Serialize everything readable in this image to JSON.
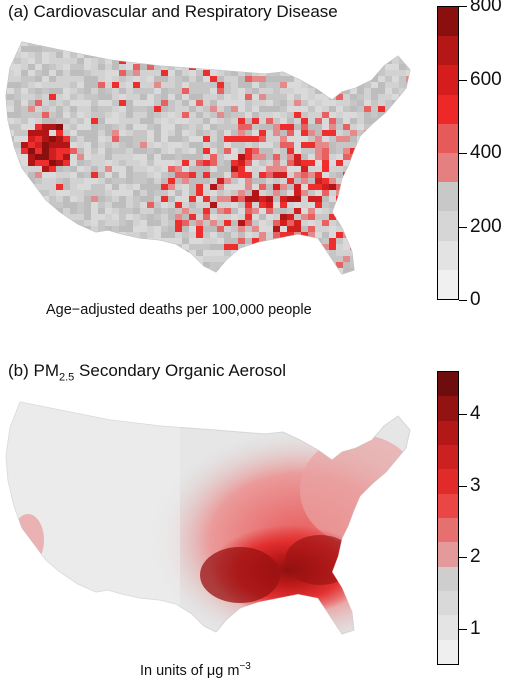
{
  "panel_a": {
    "title": "(a) Cardiovascular and Respiratory Disease",
    "caption": "Age−adjusted deaths per 100,000 people",
    "colorbar": {
      "min": 0,
      "max": 800,
      "ticks": [
        "0",
        "200",
        "400",
        "600",
        "800"
      ],
      "colors": [
        "#f0f0f0",
        "#e3e3e3",
        "#d6d6d6",
        "#c8c8c8",
        "#e48080",
        "#e65a5a",
        "#ee2828",
        "#d51d1d",
        "#b51616",
        "#8a0f0f"
      ]
    }
  },
  "panel_b": {
    "title_prefix": "(b) PM",
    "title_sub": "2.5",
    "title_suffix": " Secondary Organic Aerosol",
    "caption_prefix": "In units of μg m",
    "caption_sup": "−3",
    "colorbar": {
      "min": 0.5,
      "max": 4.6,
      "ticks": [
        "1",
        "2",
        "3",
        "4"
      ],
      "colors": [
        "#efefef",
        "#e4e4e4",
        "#d9d9d9",
        "#cecece",
        "#e49a9a",
        "#e67070",
        "#ea4646",
        "#e12a2a",
        "#cd2020",
        "#b31818",
        "#941212",
        "#6e0d0d"
      ]
    }
  },
  "chart_data": [
    {
      "type": "heatmap",
      "title": "(a) Cardiovascular and Respiratory Disease",
      "colorbar_label": "Age−adjusted deaths per 100,000 people",
      "range": [
        0,
        800
      ],
      "bins": [
        0,
        80,
        160,
        240,
        320,
        400,
        480,
        560,
        640,
        720,
        800
      ],
      "ticks": [
        0,
        200,
        400,
        600,
        800
      ]
    },
    {
      "type": "heatmap",
      "title": "(b) PM2.5 Secondary Organic Aerosol",
      "colorbar_label": "In units of μg m−3",
      "range": [
        0.5,
        4.6
      ],
      "ticks": [
        1,
        2,
        3,
        4
      ]
    }
  ]
}
